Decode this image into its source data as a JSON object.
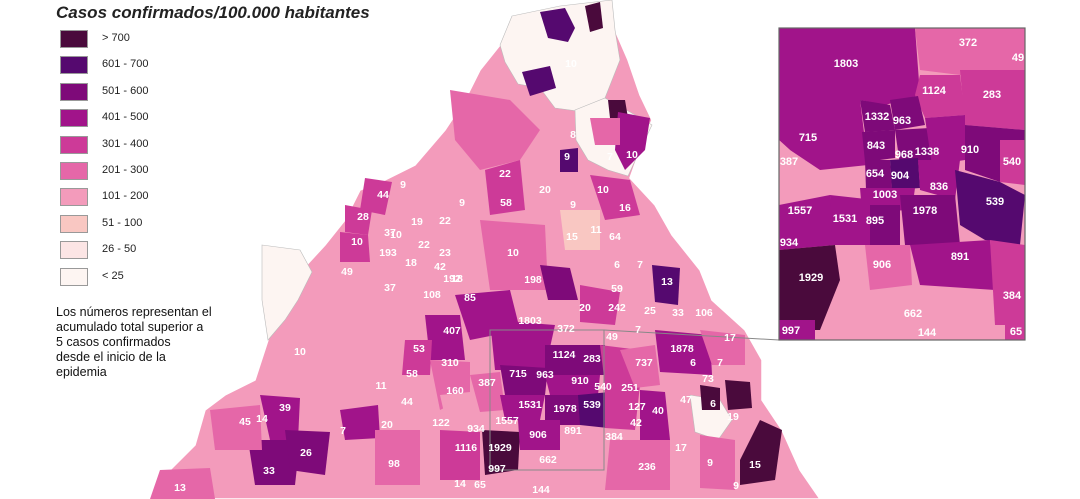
{
  "title": "Casos confirmados/100.000 habitantes",
  "legend": [
    {
      "label": "> 700",
      "color": "#4a0a3c"
    },
    {
      "label": "601 - 700",
      "color": "#55096f"
    },
    {
      "label": "501 - 600",
      "color": "#7e0a79"
    },
    {
      "label": "401 - 500",
      "color": "#a1148a"
    },
    {
      "label": "301 - 400",
      "color": "#cd3a98"
    },
    {
      "label": "201 - 300",
      "color": "#e567a8"
    },
    {
      "label": "101 - 200",
      "color": "#f39bbb"
    },
    {
      "label": "51 - 100",
      "color": "#f9c7c2"
    },
    {
      "label": "26 - 50",
      "color": "#fce5e5"
    },
    {
      "label": "< 25",
      "color": "#fdf5f2"
    }
  ],
  "note": [
    "Los números representan el",
    "acumulado total superior a",
    "5 casos confirmados",
    "desde el inicio de la",
    "epidemia"
  ],
  "map_labels": [
    "10",
    "9",
    "7",
    "10",
    "8",
    "22",
    "20",
    "10",
    "9",
    "44",
    "9",
    "16",
    "28",
    "10",
    "19",
    "22",
    "42",
    "9",
    "58",
    "10",
    "37",
    "22",
    "23",
    "15",
    "11",
    "64",
    "193",
    "18",
    "192",
    "10",
    "6",
    "7",
    "49",
    "18",
    "198",
    "13",
    "37",
    "108",
    "85",
    "59",
    "20",
    "242",
    "25",
    "33",
    "106",
    "407",
    "1803",
    "372",
    "49",
    "7",
    "17",
    "10",
    "53",
    "310",
    "1124",
    "283",
    "737",
    "1878",
    "387",
    "715",
    "963",
    "910",
    "540",
    "251",
    "6",
    "7",
    "11",
    "58",
    "160",
    "73",
    "6",
    "39",
    "44",
    "1531",
    "1978",
    "539",
    "127",
    "40",
    "47",
    "45",
    "14",
    "7",
    "20",
    "122",
    "1557",
    "906",
    "891",
    "384",
    "42",
    "19",
    "934",
    "1929",
    "236",
    "17",
    "1116",
    "662",
    "26",
    "33",
    "98",
    "997",
    "65",
    "144",
    "14",
    "13",
    "15",
    "9",
    "9"
  ],
  "inset_labels": [
    "372",
    "49",
    "1803",
    "1124",
    "283",
    "715",
    "1332",
    "963",
    "843",
    "968",
    "1338",
    "910",
    "540",
    "387",
    "654",
    "904",
    "836",
    "1003",
    "1557",
    "1531",
    "895",
    "1978",
    "539",
    "934",
    "1929",
    "906",
    "891",
    "384",
    "662",
    "144",
    "997",
    "65"
  ]
}
